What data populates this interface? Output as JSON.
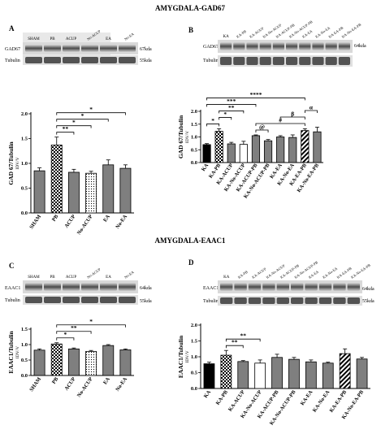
{
  "headers": {
    "top": "AMYGDALA-GAD67",
    "bottom": "AMYGDALA-EAAC1"
  },
  "blot_labels": {
    "gad67_row": "GAD67",
    "tubulin_row": "Tubulin",
    "eaac1_row": "EAAC1",
    "gad67_kda": "67kda",
    "gad67_kda_b": "64kda",
    "tubulin_kda": "55kda",
    "eaac1_kda": "64kda"
  },
  "colors": {
    "bar_fill_gray": "#7f7f7f",
    "bar_fill_black": "#000000",
    "stroke": "#000000",
    "background": "#ffffff"
  },
  "chart_data": [
    {
      "panel": "A",
      "type": "bar",
      "ylabel": "GAD 67/Tubulin",
      "ylabel2": "IDV/V",
      "ylim": [
        0,
        2.0
      ],
      "yticks": [
        0.0,
        0.5,
        1.0,
        1.5,
        2.0
      ],
      "ytick_labels": [
        "0.0",
        "0.5",
        "1.0",
        "1.5",
        "2.0"
      ],
      "categories": [
        "SHAM",
        "PB",
        "ACUP",
        "No-ACUP",
        "EA",
        "No-EA"
      ],
      "values": [
        0.85,
        1.37,
        0.82,
        0.8,
        0.97,
        0.9
      ],
      "errors": [
        0.06,
        0.16,
        0.06,
        0.04,
        0.1,
        0.07
      ],
      "patterns": [
        "gray",
        "checker",
        "gray",
        "dots",
        "gray",
        "gray"
      ],
      "significance": [
        {
          "from": 1,
          "to": 2,
          "label": "**"
        },
        {
          "from": 1,
          "to": 3,
          "label": "*"
        },
        {
          "from": 1,
          "to": 4,
          "label": "*"
        },
        {
          "from": 1,
          "to": 5,
          "label": "*"
        }
      ]
    },
    {
      "panel": "B",
      "type": "bar",
      "ylabel": "GAD 67/Tubulin",
      "ylabel2": "IDV/V",
      "ylim": [
        0,
        2.0
      ],
      "yticks": [
        0.0,
        0.5,
        1.0,
        1.5,
        2.0
      ],
      "ytick_labels": [
        "0.0",
        "0.5",
        "1.0",
        "1.5",
        "2.0"
      ],
      "categories": [
        "KA",
        "KA-PB",
        "KA-ACUP",
        "KA-No-ACUP",
        "KA-ACUP-PB",
        "KA-No-ACUP-PB",
        "KA-EA",
        "KA-No-EA",
        "KA-EA-PB",
        "KA-No-EA-PB"
      ],
      "values": [
        0.7,
        1.22,
        0.73,
        0.71,
        1.05,
        0.85,
        1.0,
        0.98,
        1.25,
        1.2
      ],
      "errors": [
        0.04,
        0.1,
        0.06,
        0.12,
        0.03,
        0.05,
        0.05,
        0.1,
        0.07,
        0.18
      ],
      "patterns": [
        "black",
        "checker",
        "gray",
        "white",
        "gray",
        "gray",
        "gray",
        "gray",
        "stripes",
        "gray"
      ],
      "significance": [
        {
          "from": 0,
          "to": 1,
          "label": "*"
        },
        {
          "from": 1,
          "to": 2,
          "label": "*"
        },
        {
          "from": 1,
          "to": 3,
          "label": "**"
        },
        {
          "from": 0,
          "to": 4,
          "label": "***"
        },
        {
          "from": 4,
          "to": 5,
          "label": "@"
        },
        {
          "from": 4,
          "to": 8,
          "label": "#"
        },
        {
          "from": 6,
          "to": 8,
          "label": "β"
        },
        {
          "from": 0,
          "to": 8,
          "label": "****"
        },
        {
          "from": 8,
          "to": 9,
          "label": "α"
        }
      ]
    },
    {
      "panel": "C",
      "type": "bar",
      "ylabel": "EAAC1/Tubulin",
      "ylabel2": "IDV/V",
      "ylim": [
        0,
        1.5
      ],
      "yticks": [
        0.0,
        0.5,
        1.0,
        1.5
      ],
      "ytick_labels": [
        "0.0",
        "0.5",
        "1.0",
        "1.5"
      ],
      "categories": [
        "SHAM",
        "PB",
        "ACUP",
        "No-ACUP",
        "EA",
        "No-EA"
      ],
      "values": [
        0.82,
        1.02,
        0.86,
        0.78,
        0.97,
        0.83
      ],
      "errors": [
        0.04,
        0.04,
        0.03,
        0.03,
        0.03,
        0.03
      ],
      "patterns": [
        "gray",
        "checker",
        "gray",
        "dots",
        "gray",
        "gray"
      ],
      "significance": [
        {
          "from": 1,
          "to": 2,
          "label": "*"
        },
        {
          "from": 1,
          "to": 3,
          "label": "**"
        },
        {
          "from": 1,
          "to": 5,
          "label": "*"
        }
      ]
    },
    {
      "panel": "D",
      "type": "bar",
      "ylabel": "EAAC1/Tubulin",
      "ylabel2": "IDV/V",
      "ylim": [
        0,
        2.0
      ],
      "yticks": [
        0.0,
        0.5,
        1.0,
        1.5,
        2.0
      ],
      "ytick_labels": [
        "0.0",
        "0.5",
        "1.0",
        "1.5",
        "2.0"
      ],
      "categories": [
        "KA",
        "KA-PB",
        "KA-ACUP",
        "KA-No-ACUP",
        "KA-ACUP-PB",
        "KA-No-ACUP-PB",
        "KA-EA",
        "KA-No-EA",
        "KA-EA-PB",
        "KA-No-EA-PB"
      ],
      "values": [
        0.78,
        1.05,
        0.85,
        0.8,
        0.98,
        0.92,
        0.84,
        0.8,
        1.1,
        0.93
      ],
      "errors": [
        0.05,
        0.15,
        0.03,
        0.1,
        0.1,
        0.06,
        0.06,
        0.03,
        0.15,
        0.05
      ],
      "patterns": [
        "black",
        "checker",
        "gray",
        "white",
        "gray",
        "gray",
        "gray",
        "gray",
        "stripes",
        "gray"
      ],
      "significance": [
        {
          "from": 1,
          "to": 2,
          "label": "**"
        },
        {
          "from": 1,
          "to": 3,
          "label": "**"
        }
      ]
    }
  ]
}
